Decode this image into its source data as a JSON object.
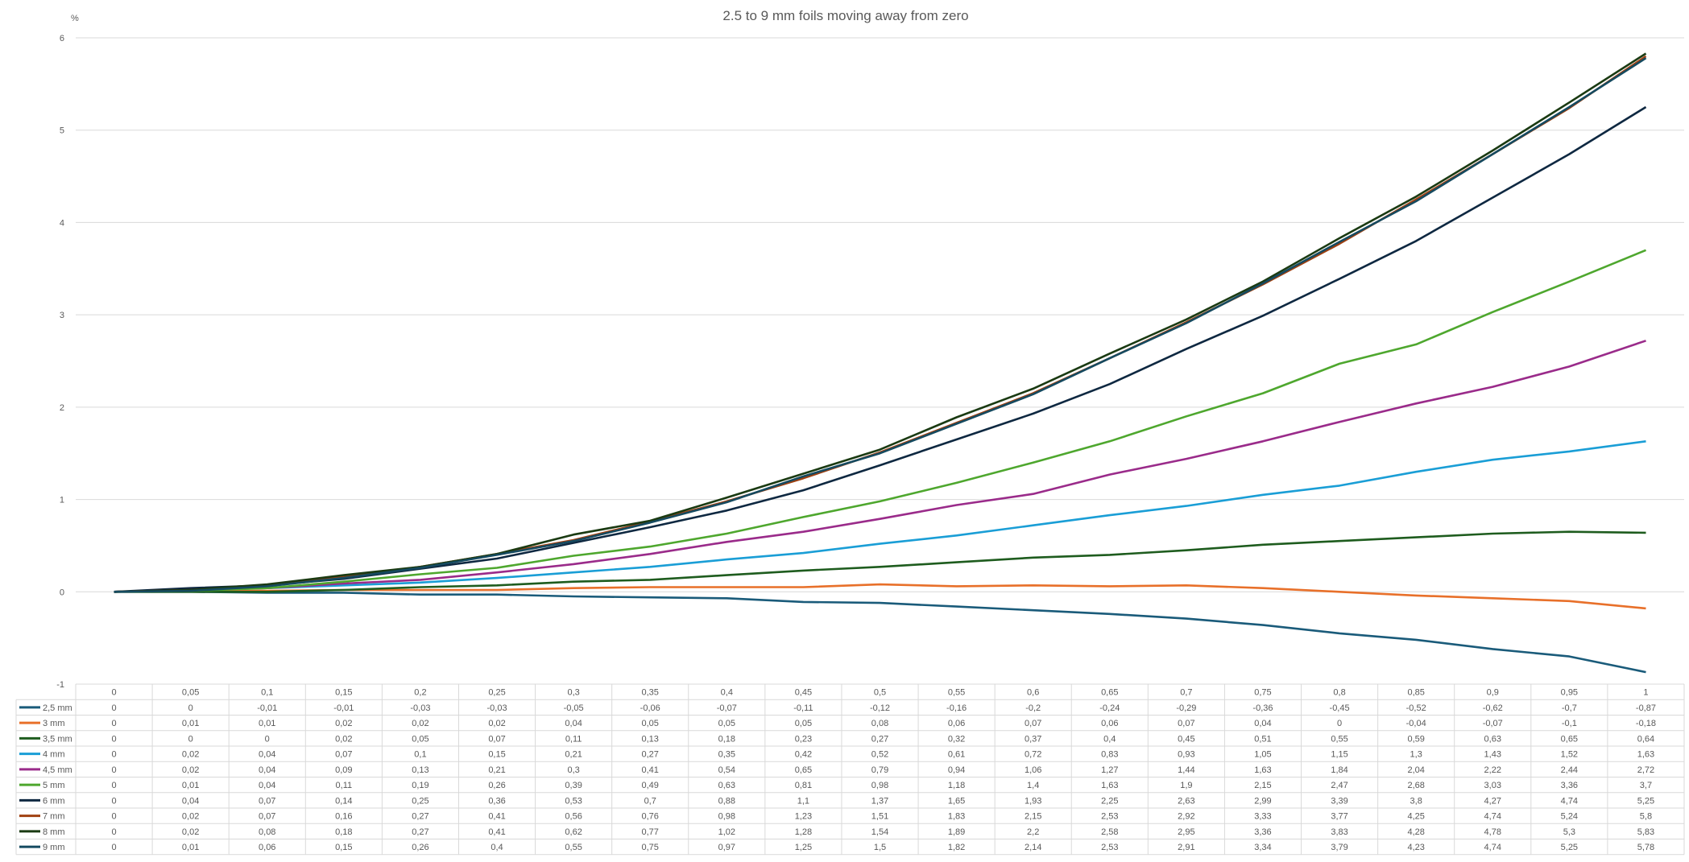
{
  "chart_data": {
    "type": "line",
    "title": "2.5 to 9 mm foils moving away from zero",
    "ylabel": "%",
    "xlabel": "",
    "ylim": [
      -1,
      6
    ],
    "y_ticks": [
      "-1",
      "0",
      "1",
      "2",
      "3",
      "4",
      "5",
      "6"
    ],
    "grid": true,
    "legend": "data-table",
    "categories": [
      "0",
      "0,05",
      "0,1",
      "0,15",
      "0,2",
      "0,25",
      "0,3",
      "0,35",
      "0,4",
      "0,45",
      "0,5",
      "0,55",
      "0,6",
      "0,65",
      "0,7",
      "0,75",
      "0,8",
      "0,85",
      "0,9",
      "0,95",
      "1"
    ],
    "series": [
      {
        "name": "2,5 mm",
        "color": "#1a5b7a",
        "values": [
          0,
          0,
          -0.01,
          -0.01,
          -0.03,
          -0.03,
          -0.05,
          -0.06,
          -0.07,
          -0.11,
          -0.12,
          -0.16,
          -0.2,
          -0.24,
          -0.29,
          -0.36,
          -0.45,
          -0.52,
          -0.62,
          -0.7,
          -0.87
        ],
        "labels": [
          "0",
          "0",
          "-0,01",
          "-0,01",
          "-0,03",
          "-0,03",
          "-0,05",
          "-0,06",
          "-0,07",
          "-0,11",
          "-0,12",
          "-0,16",
          "-0,2",
          "-0,24",
          "-0,29",
          "-0,36",
          "-0,45",
          "-0,52",
          "-0,62",
          "-0,7",
          "-0,87"
        ]
      },
      {
        "name": "3 mm",
        "color": "#e8702a",
        "values": [
          0,
          0.01,
          0.01,
          0.02,
          0.02,
          0.02,
          0.04,
          0.05,
          0.05,
          0.05,
          0.08,
          0.06,
          0.07,
          0.06,
          0.07,
          0.04,
          0,
          -0.04,
          -0.07,
          -0.1,
          -0.18
        ],
        "labels": [
          "0",
          "0,01",
          "0,01",
          "0,02",
          "0,02",
          "0,02",
          "0,04",
          "0,05",
          "0,05",
          "0,05",
          "0,08",
          "0,06",
          "0,07",
          "0,06",
          "0,07",
          "0,04",
          "0",
          "-0,04",
          "-0,07",
          "-0,1",
          "-0,18"
        ]
      },
      {
        "name": "3,5 mm",
        "color": "#1e5c1e",
        "values": [
          0,
          0,
          0,
          0.02,
          0.05,
          0.07,
          0.11,
          0.13,
          0.18,
          0.23,
          0.27,
          0.32,
          0.37,
          0.4,
          0.45,
          0.51,
          0.55,
          0.59,
          0.63,
          0.65,
          0.64
        ],
        "labels": [
          "0",
          "0",
          "0",
          "0,02",
          "0,05",
          "0,07",
          "0,11",
          "0,13",
          "0,18",
          "0,23",
          "0,27",
          "0,32",
          "0,37",
          "0,4",
          "0,45",
          "0,51",
          "0,55",
          "0,59",
          "0,63",
          "0,65",
          "0,64"
        ]
      },
      {
        "name": "4 mm",
        "color": "#1a9ed6",
        "values": [
          0,
          0.02,
          0.04,
          0.07,
          0.1,
          0.15,
          0.21,
          0.27,
          0.35,
          0.42,
          0.52,
          0.61,
          0.72,
          0.83,
          0.93,
          1.05,
          1.15,
          1.3,
          1.43,
          1.52,
          1.63
        ],
        "labels": [
          "0",
          "0,02",
          "0,04",
          "0,07",
          "0,1",
          "0,15",
          "0,21",
          "0,27",
          "0,35",
          "0,42",
          "0,52",
          "0,61",
          "0,72",
          "0,83",
          "0,93",
          "1,05",
          "1,15",
          "1,3",
          "1,43",
          "1,52",
          "1,63"
        ]
      },
      {
        "name": "4,5 mm",
        "color": "#9a2b8a",
        "values": [
          0,
          0.02,
          0.04,
          0.09,
          0.13,
          0.21,
          0.3,
          0.41,
          0.54,
          0.65,
          0.79,
          0.94,
          1.06,
          1.27,
          1.44,
          1.63,
          1.84,
          2.04,
          2.22,
          2.44,
          2.72
        ],
        "labels": [
          "0",
          "0,02",
          "0,04",
          "0,09",
          "0,13",
          "0,21",
          "0,3",
          "0,41",
          "0,54",
          "0,65",
          "0,79",
          "0,94",
          "1,06",
          "1,27",
          "1,44",
          "1,63",
          "1,84",
          "2,04",
          "2,22",
          "2,44",
          "2,72"
        ]
      },
      {
        "name": "5 mm",
        "color": "#4ea72e",
        "values": [
          0,
          0.01,
          0.04,
          0.11,
          0.19,
          0.26,
          0.39,
          0.49,
          0.63,
          0.81,
          0.98,
          1.18,
          1.4,
          1.63,
          1.9,
          2.15,
          2.47,
          2.68,
          3.03,
          3.36,
          3.7
        ],
        "labels": [
          "0",
          "0,01",
          "0,04",
          "0,11",
          "0,19",
          "0,26",
          "0,39",
          "0,49",
          "0,63",
          "0,81",
          "0,98",
          "1,18",
          "1,4",
          "1,63",
          "1,9",
          "2,15",
          "2,47",
          "2,68",
          "3,03",
          "3,36",
          "3,7"
        ]
      },
      {
        "name": "6 mm",
        "color": "#0e2841",
        "values": [
          0,
          0.04,
          0.07,
          0.14,
          0.25,
          0.36,
          0.53,
          0.7,
          0.88,
          1.1,
          1.37,
          1.65,
          1.93,
          2.25,
          2.63,
          2.99,
          3.39,
          3.8,
          4.27,
          4.74,
          5.25
        ],
        "labels": [
          "0",
          "0,04",
          "0,07",
          "0,14",
          "0,25",
          "0,36",
          "0,53",
          "0,7",
          "0,88",
          "1,1",
          "1,37",
          "1,65",
          "1,93",
          "2,25",
          "2,63",
          "2,99",
          "3,39",
          "3,8",
          "4,27",
          "4,74",
          "5,25"
        ]
      },
      {
        "name": "7 mm",
        "color": "#a04010",
        "values": [
          0,
          0.02,
          0.07,
          0.16,
          0.27,
          0.41,
          0.56,
          0.76,
          0.98,
          1.23,
          1.51,
          1.83,
          2.15,
          2.53,
          2.92,
          3.33,
          3.77,
          4.25,
          4.74,
          5.24,
          5.8
        ],
        "labels": [
          "0",
          "0,02",
          "0,07",
          "0,16",
          "0,27",
          "0,41",
          "0,56",
          "0,76",
          "0,98",
          "1,23",
          "1,51",
          "1,83",
          "2,15",
          "2,53",
          "2,92",
          "3,33",
          "3,77",
          "4,25",
          "4,74",
          "5,24",
          "5,8"
        ]
      },
      {
        "name": "8 mm",
        "color": "#1a3a12",
        "values": [
          0,
          0.02,
          0.08,
          0.18,
          0.27,
          0.41,
          0.62,
          0.77,
          1.02,
          1.28,
          1.54,
          1.89,
          2.2,
          2.58,
          2.95,
          3.36,
          3.83,
          4.28,
          4.78,
          5.3,
          5.83
        ],
        "labels": [
          "0",
          "0,02",
          "0,08",
          "0,18",
          "0,27",
          "0,41",
          "0,62",
          "0,77",
          "1,02",
          "1,28",
          "1,54",
          "1,89",
          "2,2",
          "2,58",
          "2,95",
          "3,36",
          "3,83",
          "4,28",
          "4,78",
          "5,3",
          "5,83"
        ]
      },
      {
        "name": "9 mm",
        "color": "#154a60",
        "values": [
          0,
          0.01,
          0.06,
          0.15,
          0.26,
          0.4,
          0.55,
          0.75,
          0.97,
          1.25,
          1.5,
          1.82,
          2.14,
          2.53,
          2.91,
          3.34,
          3.79,
          4.23,
          4.74,
          5.25,
          5.78
        ],
        "labels": [
          "0",
          "0,01",
          "0,06",
          "0,15",
          "0,26",
          "0,4",
          "0,55",
          "0,75",
          "0,97",
          "1,25",
          "1,5",
          "1,82",
          "2,14",
          "2,53",
          "2,91",
          "3,34",
          "3,79",
          "4,23",
          "4,74",
          "5,25",
          "5,78"
        ]
      }
    ]
  }
}
